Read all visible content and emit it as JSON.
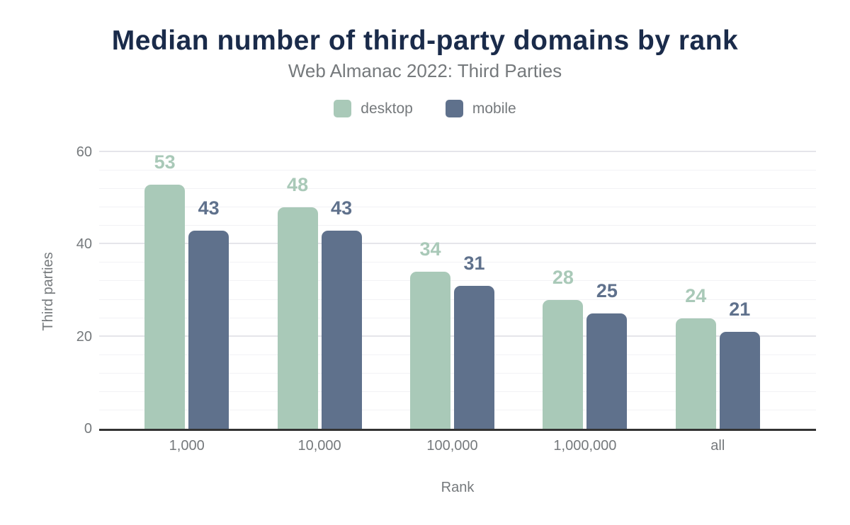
{
  "header": {
    "title": "Median number of third-party domains by rank",
    "subtitle": "Web Almanac 2022: Third Parties"
  },
  "chart_data": {
    "type": "bar",
    "categories": [
      "1,000",
      "10,000",
      "100,000",
      "1,000,000",
      "all"
    ],
    "series": [
      {
        "name": "desktop",
        "color": "#a9c9b8",
        "values": [
          53,
          48,
          34,
          28,
          24
        ]
      },
      {
        "name": "mobile",
        "color": "#5f718c",
        "values": [
          43,
          43,
          31,
          25,
          21
        ]
      }
    ],
    "title": "Median number of third-party domains by rank",
    "subtitle": "Web Almanac 2022: Third Parties",
    "xlabel": "Rank",
    "ylabel": "Third parties",
    "ylim": [
      0,
      60
    ],
    "yticks": [
      0,
      20,
      40,
      60
    ],
    "minor_gridline_step": 4,
    "grid": true,
    "legend_position": "top",
    "bar_value_labels": true
  },
  "colors": {
    "title_text": "#1a2b4a",
    "muted_text": "#75797c",
    "desktop_series": "#a9c9b8",
    "mobile_series": "#5f718c",
    "axis_line": "#333333",
    "major_gridline": "#e5e5ea",
    "minor_gridline": "#f2f2f5",
    "background": "#ffffff"
  }
}
